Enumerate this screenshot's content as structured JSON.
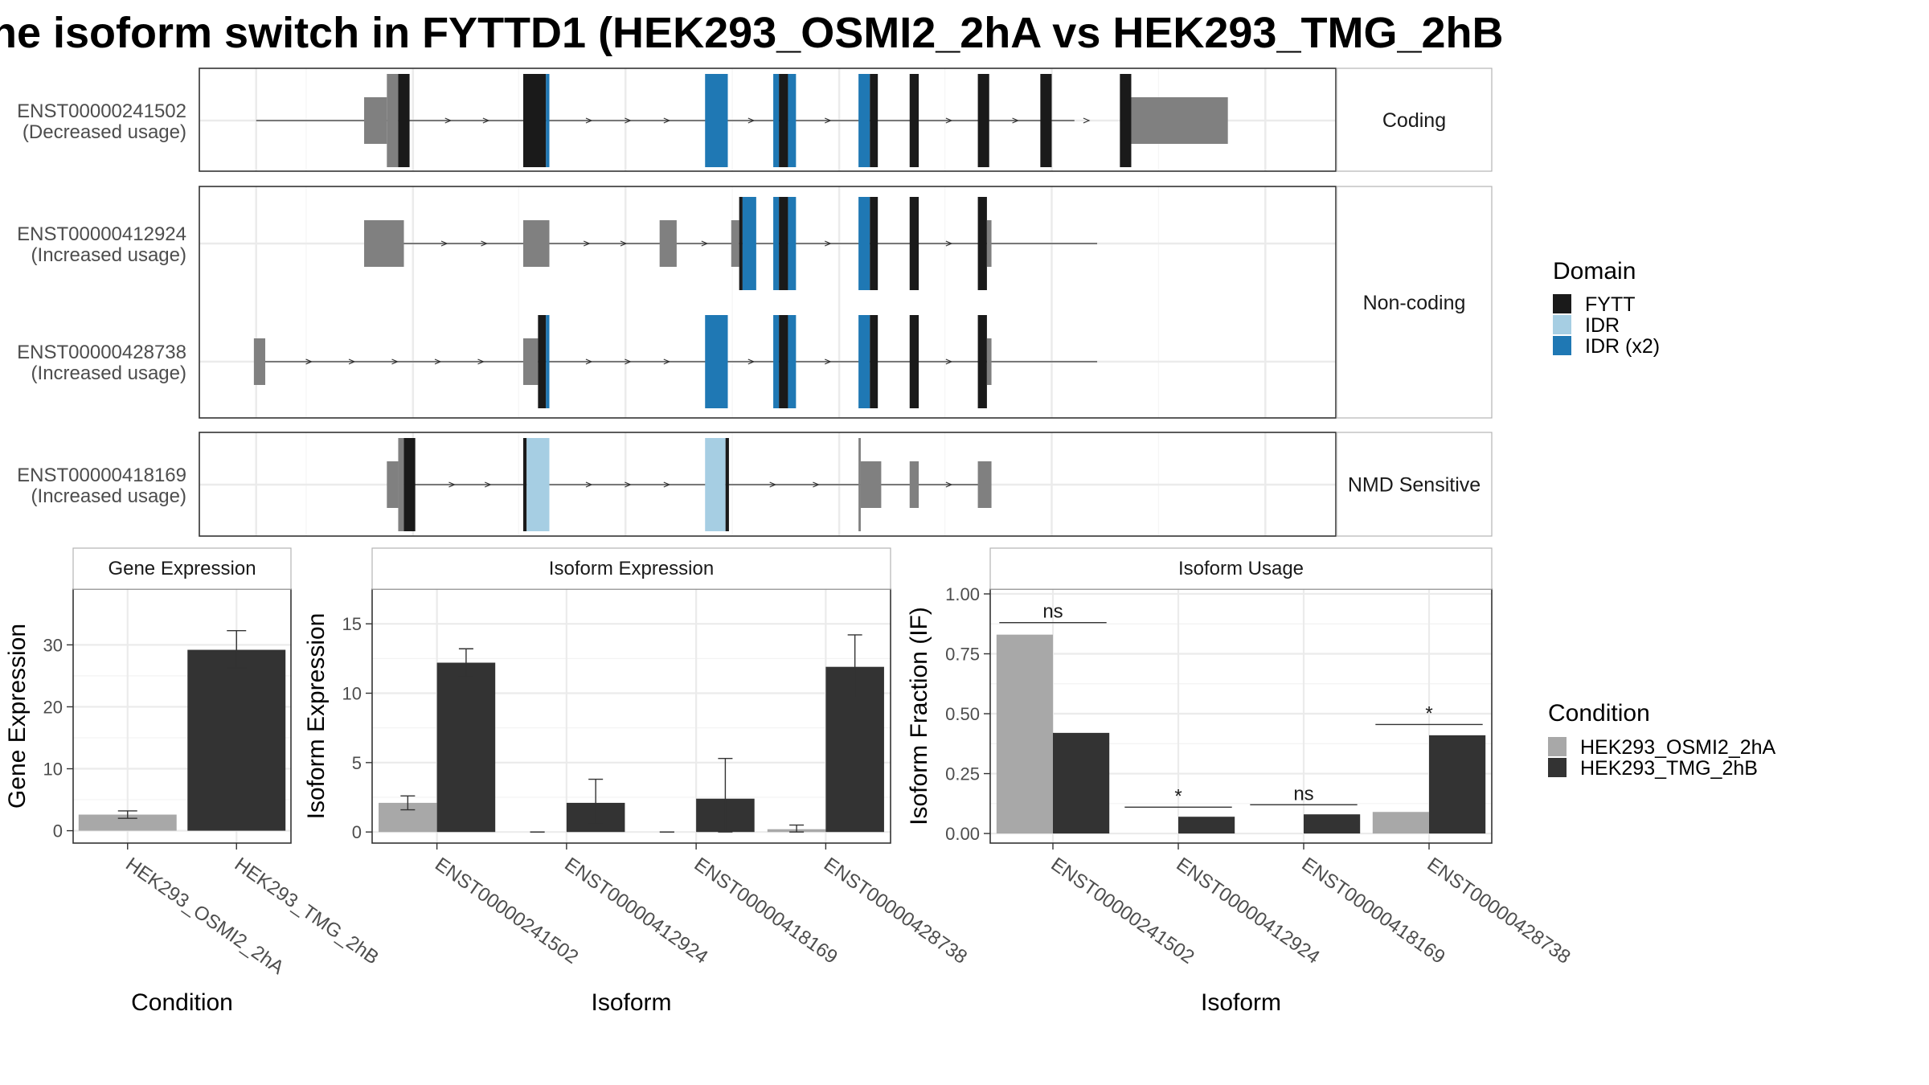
{
  "title": "he isoform switch in FYTTD1 (HEK293_OSMI2_2hA vs HEK293_TMG_2hB",
  "domain_legend": {
    "title": "Domain",
    "items": [
      {
        "label": "FYTT",
        "color": "#1a1a1a"
      },
      {
        "label": "IDR",
        "color": "#a6cee3"
      },
      {
        "label": "IDR (x2)",
        "color": "#1f78b4"
      }
    ]
  },
  "condition_legend": {
    "title": "Condition",
    "items": [
      {
        "label": "HEK293_OSMI2_2hA",
        "color": "#a8a8a8"
      },
      {
        "label": "HEK293_TMG_2hB",
        "color": "#333333"
      }
    ]
  },
  "structure": {
    "colors": {
      "utr": "#808080",
      "FYTT": "#1a1a1a",
      "IDR": "#a6cee3",
      "IDR (x2)": "#1f78b4"
    },
    "panels": [
      {
        "label": "Coding",
        "rows": [
          {
            "id": "ENST00000241502",
            "usage": "(Decreased usage)",
            "line": [
              0.05,
              0.77
            ],
            "segments": [
              {
                "s": 0.145,
                "e": 0.165,
                "t": "utr",
                "f": "half"
              },
              {
                "s": 0.165,
                "e": 0.175,
                "t": "utr"
              },
              {
                "s": 0.175,
                "e": 0.185,
                "t": "FYTT"
              },
              {
                "s": 0.285,
                "e": 0.305,
                "t": "FYTT"
              },
              {
                "s": 0.305,
                "e": 0.308,
                "t": "IDR (x2)"
              },
              {
                "s": 0.445,
                "e": 0.465,
                "t": "IDR (x2)"
              },
              {
                "s": 0.505,
                "e": 0.51,
                "t": "IDR (x2)"
              },
              {
                "s": 0.51,
                "e": 0.518,
                "t": "FYTT"
              },
              {
                "s": 0.518,
                "e": 0.525,
                "t": "IDR (x2)"
              },
              {
                "s": 0.58,
                "e": 0.59,
                "t": "IDR (x2)"
              },
              {
                "s": 0.59,
                "e": 0.597,
                "t": "FYTT"
              },
              {
                "s": 0.625,
                "e": 0.633,
                "t": "FYTT"
              },
              {
                "s": 0.685,
                "e": 0.695,
                "t": "FYTT"
              },
              {
                "s": 0.74,
                "e": 0.75,
                "t": "FYTT"
              },
              {
                "s": 0.81,
                "e": 0.82,
                "t": "FYTT"
              },
              {
                "s": 0.82,
                "e": 0.905,
                "t": "utr",
                "f": "half"
              }
            ]
          },
          {
            "id": "",
            "usage": "",
            "line": [
              0,
              0
            ],
            "segments": [],
            "hidden": true
          }
        ]
      },
      {
        "label": "Non-coding",
        "rows": [
          {
            "id": "ENST00000412924",
            "usage": "(Increased usage)",
            "line": [
              0.18,
              0.79
            ],
            "segments": [
              {
                "s": 0.145,
                "e": 0.18,
                "t": "utr",
                "f": "half"
              },
              {
                "s": 0.285,
                "e": 0.308,
                "t": "utr",
                "f": "half"
              },
              {
                "s": 0.405,
                "e": 0.42,
                "t": "utr",
                "f": "half"
              },
              {
                "s": 0.468,
                "e": 0.475,
                "t": "utr",
                "f": "half"
              },
              {
                "s": 0.475,
                "e": 0.478,
                "t": "FYTT"
              },
              {
                "s": 0.478,
                "e": 0.49,
                "t": "IDR (x2)"
              },
              {
                "s": 0.505,
                "e": 0.51,
                "t": "IDR (x2)"
              },
              {
                "s": 0.51,
                "e": 0.518,
                "t": "FYTT"
              },
              {
                "s": 0.518,
                "e": 0.525,
                "t": "IDR (x2)"
              },
              {
                "s": 0.58,
                "e": 0.59,
                "t": "IDR (x2)"
              },
              {
                "s": 0.59,
                "e": 0.597,
                "t": "FYTT"
              },
              {
                "s": 0.625,
                "e": 0.633,
                "t": "FYTT"
              },
              {
                "s": 0.685,
                "e": 0.693,
                "t": "FYTT"
              },
              {
                "s": 0.693,
                "e": 0.697,
                "t": "utr",
                "f": "half"
              }
            ]
          },
          {
            "id": "ENST00000428738",
            "usage": "(Increased usage)",
            "line": [
              0.05,
              0.79
            ],
            "segments": [
              {
                "s": 0.048,
                "e": 0.058,
                "t": "utr",
                "f": "half"
              },
              {
                "s": 0.285,
                "e": 0.298,
                "t": "utr",
                "f": "half"
              },
              {
                "s": 0.298,
                "e": 0.305,
                "t": "FYTT"
              },
              {
                "s": 0.305,
                "e": 0.308,
                "t": "IDR (x2)"
              },
              {
                "s": 0.445,
                "e": 0.465,
                "t": "IDR (x2)"
              },
              {
                "s": 0.505,
                "e": 0.51,
                "t": "IDR (x2)"
              },
              {
                "s": 0.51,
                "e": 0.518,
                "t": "FYTT"
              },
              {
                "s": 0.518,
                "e": 0.525,
                "t": "IDR (x2)"
              },
              {
                "s": 0.58,
                "e": 0.59,
                "t": "IDR (x2)"
              },
              {
                "s": 0.59,
                "e": 0.597,
                "t": "FYTT"
              },
              {
                "s": 0.625,
                "e": 0.633,
                "t": "FYTT"
              },
              {
                "s": 0.685,
                "e": 0.693,
                "t": "FYTT"
              },
              {
                "s": 0.693,
                "e": 0.697,
                "t": "utr",
                "f": "half"
              }
            ]
          }
        ]
      },
      {
        "label": "NMD Sensitive",
        "rows": [
          {
            "id": "ENST00000418169",
            "usage": "(Increased usage)",
            "line": [
              0.18,
              0.69
            ],
            "segments": [
              {
                "s": 0.165,
                "e": 0.175,
                "t": "utr",
                "f": "half"
              },
              {
                "s": 0.175,
                "e": 0.18,
                "t": "utr"
              },
              {
                "s": 0.18,
                "e": 0.19,
                "t": "FYTT"
              },
              {
                "s": 0.285,
                "e": 0.288,
                "t": "FYTT"
              },
              {
                "s": 0.288,
                "e": 0.308,
                "t": "IDR"
              },
              {
                "s": 0.445,
                "e": 0.463,
                "t": "IDR"
              },
              {
                "s": 0.463,
                "e": 0.466,
                "t": "FYTT"
              },
              {
                "s": 0.58,
                "e": 0.582,
                "t": "utr"
              },
              {
                "s": 0.582,
                "e": 0.6,
                "t": "utr",
                "f": "half"
              },
              {
                "s": 0.625,
                "e": 0.633,
                "t": "utr",
                "f": "half"
              },
              {
                "s": 0.685,
                "e": 0.697,
                "t": "utr",
                "f": "half"
              }
            ]
          }
        ]
      }
    ]
  },
  "chart_data": [
    {
      "type": "bar",
      "title": "Gene Expression",
      "xlabel": "Condition",
      "ylabel": "Gene Expression",
      "ylim": [
        -2,
        39
      ],
      "yticks": [
        0,
        10,
        20,
        30
      ],
      "categories": [
        "HEK293_OSMI2_2hA",
        "HEK293_TMG_2hB"
      ],
      "values": [
        2.6,
        29.2
      ],
      "err": [
        [
          2.0,
          3.2
        ],
        [
          26.3,
          32.3
        ]
      ],
      "colors": [
        "#a8a8a8",
        "#333333"
      ]
    },
    {
      "type": "bar",
      "title": "Isoform Expression",
      "xlabel": "Isoform",
      "ylabel": "Isoform Expression",
      "ylim": [
        -0.8,
        17.5
      ],
      "yticks": [
        0,
        5,
        10,
        15
      ],
      "categories": [
        "ENST00000241502",
        "ENST00000412924",
        "ENST00000418169",
        "ENST00000428738"
      ],
      "series": [
        {
          "name": "HEK293_OSMI2_2hA",
          "color": "#a8a8a8",
          "values": [
            2.1,
            0.0,
            0.0,
            0.2
          ],
          "err": [
            [
              1.6,
              2.6
            ],
            [
              0,
              0
            ],
            [
              0,
              0
            ],
            [
              0.0,
              0.5
            ]
          ]
        },
        {
          "name": "HEK293_TMG_2hB",
          "color": "#333333",
          "values": [
            12.2,
            2.1,
            2.4,
            11.9
          ],
          "err": [
            [
              11.2,
              13.2
            ],
            [
              0.6,
              3.8
            ],
            [
              0.0,
              5.3
            ],
            [
              9.7,
              14.2
            ]
          ]
        }
      ]
    },
    {
      "type": "bar",
      "title": "Isoform Usage",
      "xlabel": "Isoform",
      "ylabel": "Isoform Fraction (IF)",
      "ylim": [
        -0.04,
        1.02
      ],
      "yticks": [
        0.0,
        0.25,
        0.5,
        0.75,
        1.0
      ],
      "yticklabels": [
        "0.00",
        "0.25",
        "0.50",
        "0.75",
        "1.00"
      ],
      "categories": [
        "ENST00000241502",
        "ENST00000412924",
        "ENST00000418169",
        "ENST00000428738"
      ],
      "series": [
        {
          "name": "HEK293_OSMI2_2hA",
          "color": "#a8a8a8",
          "values": [
            0.83,
            0.0,
            0.0,
            0.09
          ]
        },
        {
          "name": "HEK293_TMG_2hB",
          "color": "#333333",
          "values": [
            0.42,
            0.07,
            0.08,
            0.41
          ]
        }
      ],
      "significance": [
        {
          "label": "ns",
          "y": 0.88
        },
        {
          "label": "*",
          "y": 0.11
        },
        {
          "label": "ns",
          "y": 0.12
        },
        {
          "label": "*",
          "y": 0.455
        }
      ]
    }
  ]
}
